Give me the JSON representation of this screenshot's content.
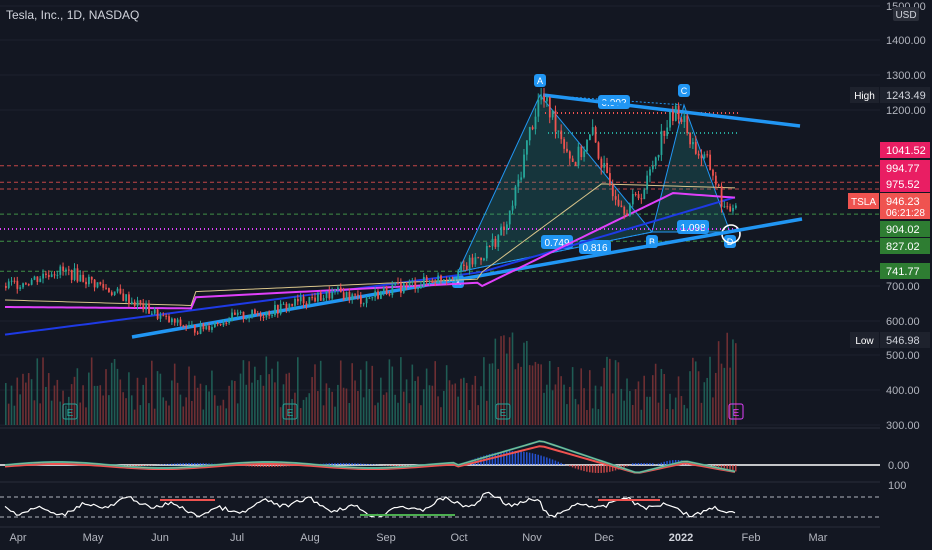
{
  "header": {
    "symbol_title": "Tesla, Inc., 1D, NASDAQ",
    "currency": "USD"
  },
  "chart_data": {
    "type": "candlestick",
    "title": "Tesla, Inc., 1D, NASDAQ",
    "ylim": [
      300,
      1500
    ],
    "price_ticks": [
      1500,
      1400,
      1300,
      1200,
      700,
      600,
      500,
      400,
      300
    ],
    "price_tick_labels": [
      "1500.00",
      "1400.00",
      "1300.00",
      "1200.00",
      "700.00",
      "600.00",
      "500.00",
      "400.00",
      "300.00"
    ],
    "x_months": [
      "Apr",
      "May",
      "Jun",
      "Jul",
      "Aug",
      "Sep",
      "Oct",
      "Nov",
      "Dec",
      "2022",
      "Feb",
      "Mar"
    ],
    "price_path": [
      {
        "x": 0,
        "y": 700
      },
      {
        "x": 12,
        "y": 720
      },
      {
        "x": 20,
        "y": 745
      },
      {
        "x": 28,
        "y": 735
      },
      {
        "x": 40,
        "y": 700
      },
      {
        "x": 55,
        "y": 650
      },
      {
        "x": 68,
        "y": 600
      },
      {
        "x": 80,
        "y": 575
      },
      {
        "x": 95,
        "y": 610
      },
      {
        "x": 110,
        "y": 625
      },
      {
        "x": 125,
        "y": 660
      },
      {
        "x": 140,
        "y": 680
      },
      {
        "x": 150,
        "y": 660
      },
      {
        "x": 160,
        "y": 690
      },
      {
        "x": 175,
        "y": 710
      },
      {
        "x": 190,
        "y": 740
      },
      {
        "x": 200,
        "y": 790
      },
      {
        "x": 210,
        "y": 870
      },
      {
        "x": 215,
        "y": 1000
      },
      {
        "x": 220,
        "y": 1150
      },
      {
        "x": 224,
        "y": 1240
      },
      {
        "x": 230,
        "y": 1170
      },
      {
        "x": 238,
        "y": 1050
      },
      {
        "x": 246,
        "y": 1130
      },
      {
        "x": 252,
        "y": 1000
      },
      {
        "x": 260,
        "y": 920
      },
      {
        "x": 268,
        "y": 980
      },
      {
        "x": 276,
        "y": 1150
      },
      {
        "x": 282,
        "y": 1200
      },
      {
        "x": 288,
        "y": 1100
      },
      {
        "x": 296,
        "y": 1030
      },
      {
        "x": 302,
        "y": 900
      },
      {
        "x": 306,
        "y": 946
      }
    ],
    "levels": [
      {
        "label": "1243.49",
        "value": 1243.49,
        "tag": "High"
      },
      {
        "label": "1041.52",
        "value": 1041.52
      },
      {
        "label": "994.77",
        "value": 994.77
      },
      {
        "label": "975.52",
        "value": 975.52
      },
      {
        "label": "946.23",
        "value": 946.23,
        "tag": "TSLA"
      },
      {
        "label": "904.02",
        "value": 904.02
      },
      {
        "label": "827.02",
        "value": 827.02
      },
      {
        "label": "741.77",
        "value": 741.77
      },
      {
        "label": "546.98",
        "value": 546.98,
        "tag": "Low"
      }
    ],
    "countdown": "06:21:28",
    "pattern_points": [
      "X",
      "A",
      "B",
      "C",
      "D"
    ],
    "pattern_ratios": [
      "0.902",
      "0.749",
      "0.816",
      "1.098"
    ],
    "earnings_marker": "E",
    "macd_label": "0.00",
    "osc_label": "100"
  },
  "colors": {
    "up": "#26a69a",
    "down": "#ef5350",
    "trendline": "#2196f3",
    "ma_fast": "#e040fb",
    "ma_slow": "#1e3ae5"
  }
}
